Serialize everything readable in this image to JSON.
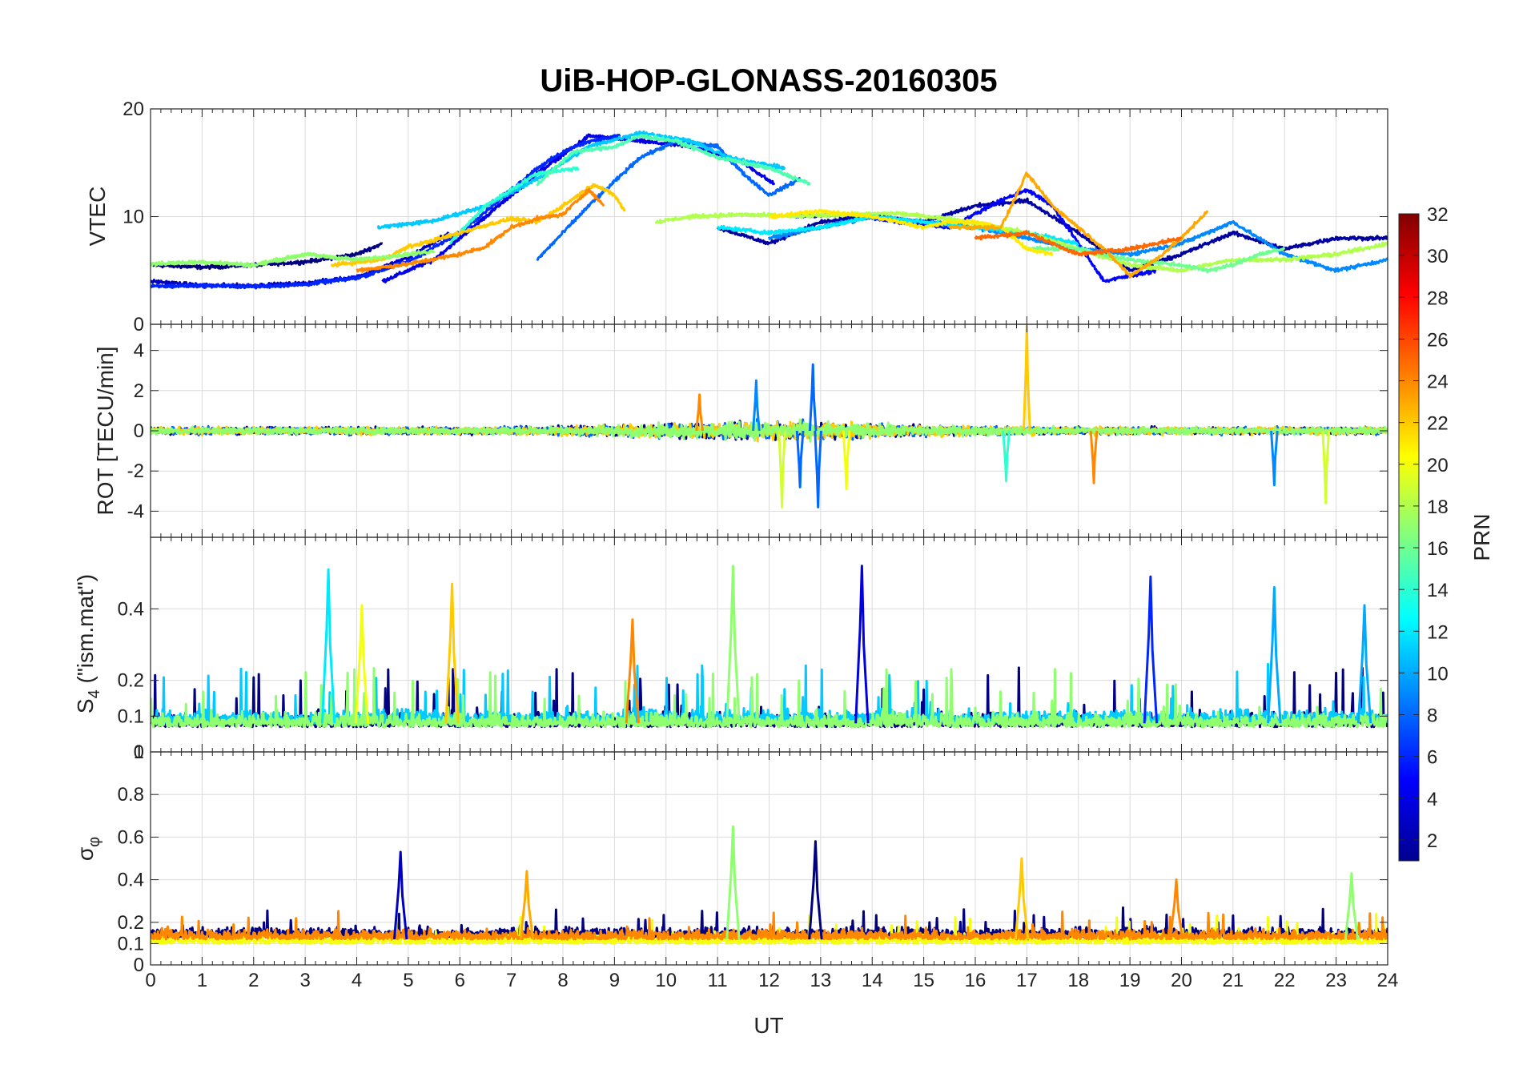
{
  "title": "UiB-HOP-GLONASS-20160305",
  "xaxis": {
    "label": "UT",
    "min": 0,
    "max": 24,
    "ticks": [
      "0",
      "1",
      "2",
      "3",
      "4",
      "5",
      "6",
      "7",
      "8",
      "9",
      "10",
      "11",
      "12",
      "13",
      "14",
      "15",
      "16",
      "17",
      "18",
      "19",
      "20",
      "21",
      "22",
      "23",
      "24"
    ]
  },
  "panels": {
    "vtec": {
      "ylabel": "VTEC",
      "ylim": [
        0,
        20
      ],
      "ticks": [
        "0",
        "10",
        "20"
      ],
      "tick_values": [
        0,
        10,
        20
      ]
    },
    "rot": {
      "ylabel": "ROT [TECU/min]",
      "ylim": [
        -5.3,
        5.3
      ],
      "ticks": [
        "-4",
        "-2",
        "0",
        "2",
        "4"
      ],
      "tick_values": [
        -4,
        -2,
        0,
        2,
        4
      ]
    },
    "s4": {
      "ylabel_main": "S",
      "ylabel_sub": "4",
      "ylabel_rest": " (\"ism.mat\")",
      "ylim": [
        0,
        0.6
      ],
      "ticks": [
        "0",
        "0.1",
        "0.2",
        "0.4"
      ],
      "tick_values": [
        0,
        0.1,
        0.2,
        0.4
      ]
    },
    "sigma": {
      "ylabel_main": "σ",
      "ylabel_sub": "φ",
      "ylim": [
        0,
        1
      ],
      "ticks": [
        "0",
        "0.1",
        "0.2",
        "0.4",
        "0.6",
        "0.8",
        "1"
      ],
      "tick_values": [
        0,
        0.1,
        0.2,
        0.4,
        0.6,
        0.8,
        1
      ]
    }
  },
  "colorbar": {
    "label": "PRN",
    "min": 1,
    "max": 32,
    "ticks": [
      "2",
      "4",
      "6",
      "8",
      "10",
      "12",
      "14",
      "16",
      "18",
      "20",
      "22",
      "24",
      "26",
      "28",
      "30",
      "32"
    ],
    "tick_values": [
      2,
      4,
      6,
      8,
      10,
      12,
      14,
      16,
      18,
      20,
      22,
      24,
      26,
      28,
      30,
      32
    ],
    "colormap": "jet"
  },
  "chart_data": {
    "type": "line",
    "title": "UiB-HOP-GLONASS-20160305",
    "xlabel": "UT",
    "xlim": [
      0,
      24
    ],
    "grid": true,
    "color_by": "PRN",
    "panels": [
      {
        "name": "VTEC",
        "ylabel": "VTEC",
        "ylim": [
          0,
          20
        ],
        "series": [
          {
            "prn": 1,
            "x": [
              0,
              1,
              2,
              3,
              4,
              4.5
            ],
            "y": [
              5.5,
              5.3,
              5.5,
              5.8,
              6.5,
              7.5
            ]
          },
          {
            "prn": 4,
            "x": [
              4.5,
              5.5,
              6.5,
              7.5,
              8.5,
              9.5,
              10.5,
              11.5,
              12.1
            ],
            "y": [
              4,
              6,
              10,
              14,
              17.5,
              17,
              16.5,
              15,
              13
            ]
          },
          {
            "prn": 3,
            "x": [
              0,
              1,
              2,
              3,
              4,
              5,
              5.8
            ],
            "y": [
              4,
              3.6,
              3.6,
              3.8,
              4.4,
              6.2,
              8.5
            ]
          },
          {
            "prn": 6,
            "x": [
              0,
              1,
              2,
              3,
              4,
              5,
              6,
              7,
              7.5,
              8,
              8.5,
              9.1
            ],
            "y": [
              3.5,
              3.6,
              3.5,
              3.7,
              4.3,
              5.8,
              8.5,
              12.5,
              14.5,
              16,
              17,
              17.5
            ]
          },
          {
            "prn": 8,
            "x": [
              7.5,
              8.5,
              9.5,
              10.2,
              11,
              11.5,
              12,
              12.6
            ],
            "y": [
              6,
              11,
              15.5,
              17,
              16.5,
              14,
              12,
              13.5
            ]
          },
          {
            "prn": 11,
            "x": [
              4.4,
              5.5,
              6.5,
              7.5,
              8.5,
              9.5,
              10.5,
              11.2,
              12.3
            ],
            "y": [
              9,
              9.6,
              11,
              13.5,
              16.5,
              17.8,
              17,
              15.5,
              14.5
            ]
          },
          {
            "prn": 14,
            "x": [
              5.8,
              6.5,
              7.5,
              8.3
            ],
            "y": [
              7.5,
              11,
              14,
              14.5
            ]
          },
          {
            "prn": 15,
            "x": [
              7.5,
              8.2,
              9,
              9.5,
              10.2,
              11,
              12,
              12.8
            ],
            "y": [
              13,
              16,
              16.5,
              17.5,
              17,
              15.5,
              14.5,
              13
            ]
          },
          {
            "prn": 22,
            "x": [
              3.5,
              4.5,
              5,
              5.5,
              6,
              6.5,
              7,
              7.5,
              8,
              8.6,
              9,
              9.2
            ],
            "y": [
              5.5,
              6,
              7.2,
              7.8,
              8.5,
              9.2,
              9.8,
              9.5,
              11,
              13,
              12,
              10.5
            ]
          },
          {
            "prn": 24,
            "x": [
              4,
              5,
              6,
              6.5,
              7,
              7.5,
              8,
              8.5,
              8.8
            ],
            "y": [
              5,
              5.6,
              6.5,
              7.2,
              9,
              9.8,
              10.2,
              12.5,
              11
            ]
          },
          {
            "prn": 17,
            "x": [
              0,
              1,
              2,
              3,
              4,
              5,
              5.5
            ],
            "y": [
              5.6,
              5.8,
              5.5,
              6.5,
              6,
              6.5,
              6.8
            ]
          },
          {
            "prn": 2,
            "x": [
              11,
              12,
              13,
              14,
              15,
              16,
              17,
              18,
              19,
              20,
              21,
              22,
              23,
              24
            ],
            "y": [
              9,
              7.5,
              9.5,
              10,
              9.5,
              11,
              11.5,
              8.5,
              5,
              6.5,
              8.5,
              7,
              8,
              8
            ]
          },
          {
            "prn": 5,
            "x": [
              12.5,
              13.5,
              14.5,
              15.5,
              16.5,
              17,
              17.5,
              18,
              18.5,
              19,
              19.5
            ],
            "y": [
              10,
              10.2,
              9.5,
              9,
              11.5,
              12.5,
              11,
              7.5,
              4,
              4.5,
              5
            ]
          },
          {
            "prn": 9,
            "x": [
              12,
              13,
              14,
              15,
              16,
              17,
              18,
              19,
              20,
              21,
              22,
              23,
              24
            ],
            "y": [
              8,
              9,
              10,
              9.5,
              9,
              8,
              7,
              6.5,
              7.5,
              9.5,
              6.5,
              5,
              6
            ]
          },
          {
            "prn": 12,
            "x": [
              11,
              12,
              13,
              14,
              15,
              16,
              17,
              18
            ],
            "y": [
              9,
              8.5,
              9,
              10,
              9.5,
              9,
              8.5,
              7.5
            ]
          },
          {
            "prn": 18,
            "x": [
              9.8,
              10.5,
              11.5,
              12.5,
              13.5,
              14.5,
              15.5,
              16.5,
              17,
              18,
              19,
              20,
              21,
              22,
              23,
              24
            ],
            "y": [
              9.5,
              10,
              10.2,
              10,
              10.2,
              10.3,
              9.8,
              9,
              8.5,
              7,
              5.5,
              5,
              6,
              6,
              6.5,
              7.5
            ]
          },
          {
            "prn": 16,
            "x": [
              17,
              18,
              19,
              20,
              20.5,
              21,
              21.5,
              22
            ],
            "y": [
              7,
              7,
              6,
              5.5,
              5,
              5.5,
              6.5,
              7
            ]
          },
          {
            "prn": 21,
            "x": [
              12,
              13,
              14,
              15,
              15.5,
              16,
              16.5,
              17,
              17.5
            ],
            "y": [
              10,
              10.5,
              10,
              9,
              9.5,
              9.5,
              9,
              7,
              6.5
            ]
          },
          {
            "prn": 23,
            "x": [
              15.5,
              16.5,
              17,
              17.5,
              18.5,
              19,
              19.5,
              20,
              20.5
            ],
            "y": [
              9,
              9,
              14,
              11,
              7,
              4.5,
              6,
              8,
              10.5
            ]
          },
          {
            "prn": 25,
            "x": [
              16,
              17,
              18,
              19,
              20
            ],
            "y": [
              8,
              8.5,
              6.5,
              7,
              8
            ]
          }
        ]
      },
      {
        "name": "ROT",
        "ylabel": "ROT [TECU/min]",
        "ylim": [
          -5.3,
          5.3
        ],
        "series": [
          {
            "prn": 1,
            "x": [
              0,
              24
            ],
            "y": [
              0,
              0
            ]
          },
          {
            "prn": 8,
            "x": [
              0,
              24
            ],
            "y": [
              0,
              0
            ]
          },
          {
            "prn": 22,
            "x": [
              0,
              24
            ],
            "y": [
              0,
              0
            ]
          },
          {
            "prn": 17,
            "x": [
              0,
              24
            ],
            "y": [
              0,
              0
            ]
          }
        ],
        "spikes": [
          {
            "prn": 22,
            "x": 17,
            "y": 5.2
          },
          {
            "prn": 8,
            "x": 12.85,
            "y": 3.3
          },
          {
            "prn": 8,
            "x": 12.6,
            "y": -2.8
          },
          {
            "prn": 19,
            "x": 12.25,
            "y": -3.8
          },
          {
            "prn": 8,
            "x": 12.95,
            "y": -3.8
          },
          {
            "prn": 20,
            "x": 13.5,
            "y": -2.9
          },
          {
            "prn": 19,
            "x": 22.8,
            "y": -3.6
          },
          {
            "prn": 9,
            "x": 21.8,
            "y": -2.7
          },
          {
            "prn": 24,
            "x": 18.3,
            "y": -2.6
          },
          {
            "prn": 14,
            "x": 16.6,
            "y": -2.5
          },
          {
            "prn": 24,
            "x": 10.65,
            "y": 1.8
          },
          {
            "prn": 9,
            "x": 11.75,
            "y": 2.5
          }
        ]
      },
      {
        "name": "S4",
        "ylabel": "S4 (\"ism.mat\")",
        "ylim": [
          0,
          0.6
        ],
        "series": [
          {
            "prn": 1,
            "x": [
              0,
              24
            ],
            "y": [
              0.07,
              0.07
            ]
          },
          {
            "prn": 11,
            "x": [
              0,
              24
            ],
            "y": [
              0.08,
              0.08
            ]
          },
          {
            "prn": 17,
            "x": [
              0,
              24
            ],
            "y": [
              0.07,
              0.07
            ]
          }
        ],
        "peaks": [
          {
            "prn": 12,
            "x": 3.45,
            "y": 0.51
          },
          {
            "prn": 17,
            "x": 11.3,
            "y": 0.52
          },
          {
            "prn": 4,
            "x": 13.8,
            "y": 0.52
          },
          {
            "prn": 6,
            "x": 19.4,
            "y": 0.49
          },
          {
            "prn": 22,
            "x": 5.85,
            "y": 0.47
          },
          {
            "prn": 10,
            "x": 21.8,
            "y": 0.46
          },
          {
            "prn": 20,
            "x": 4.1,
            "y": 0.41
          },
          {
            "prn": 24,
            "x": 9.35,
            "y": 0.37
          },
          {
            "prn": 10,
            "x": 23.55,
            "y": 0.41
          }
        ]
      },
      {
        "name": "sigma_phi",
        "ylabel": "σφ",
        "ylim": [
          0,
          1
        ],
        "series": [
          {
            "prn": 1,
            "x": [
              0,
              24
            ],
            "y": [
              0.13,
              0.13
            ]
          },
          {
            "prn": 20,
            "x": [
              0,
              24
            ],
            "y": [
              0.1,
              0.1
            ]
          },
          {
            "prn": 24,
            "x": [
              0,
              24
            ],
            "y": [
              0.12,
              0.12
            ]
          }
        ],
        "peaks": [
          {
            "prn": 17,
            "x": 11.3,
            "y": 0.65
          },
          {
            "prn": 1,
            "x": 12.9,
            "y": 0.58
          },
          {
            "prn": 3,
            "x": 4.85,
            "y": 0.53
          },
          {
            "prn": 22,
            "x": 16.9,
            "y": 0.5
          },
          {
            "prn": 23,
            "x": 7.3,
            "y": 0.44
          },
          {
            "prn": 17,
            "x": 23.3,
            "y": 0.43
          },
          {
            "prn": 24,
            "x": 19.9,
            "y": 0.4
          }
        ]
      }
    ]
  }
}
